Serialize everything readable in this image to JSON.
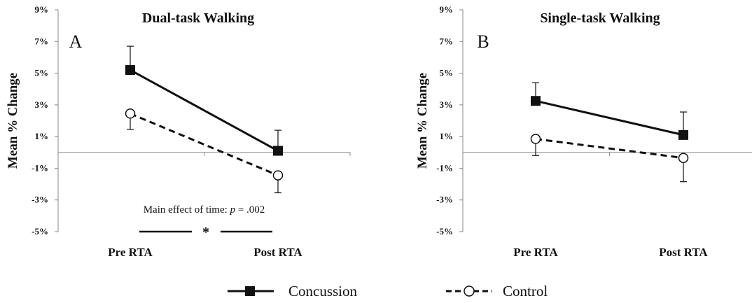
{
  "chart_data": [
    {
      "type": "line",
      "panel_letter": "A",
      "title": "Dual-task Walking",
      "ylabel": "Mean % Change",
      "categories": [
        "Pre RTA",
        "Post RTA"
      ],
      "y_ticks": [
        "9%",
        "7%",
        "5%",
        "3%",
        "1%",
        "-1%",
        "-3%",
        "-5%"
      ],
      "ylim": [
        -5,
        9
      ],
      "series": [
        {
          "name": "Concussion",
          "values": [
            5.2,
            0.1
          ],
          "error_up": [
            1.5,
            1.3
          ]
        },
        {
          "name": "Control",
          "values": [
            2.45,
            -1.45
          ],
          "error_down": [
            1.0,
            1.1
          ]
        }
      ],
      "annotation": {
        "prefix": "Main effect of time: ",
        "stat": "p",
        "value": " = .002",
        "marker": "*"
      }
    },
    {
      "type": "line",
      "panel_letter": "B",
      "title": "Single-task Walking",
      "ylabel": "Mean % Change",
      "categories": [
        "Pre RTA",
        "Post RTA"
      ],
      "y_ticks": [
        "9%",
        "7%",
        "5%",
        "3%",
        "1%",
        "-1%",
        "-3%",
        "-5%"
      ],
      "ylim": [
        -5,
        9
      ],
      "series": [
        {
          "name": "Concussion",
          "values": [
            3.25,
            1.1
          ],
          "error_up": [
            1.15,
            1.45
          ]
        },
        {
          "name": "Control",
          "values": [
            0.85,
            -0.35
          ],
          "error_down": [
            1.05,
            1.5
          ]
        }
      ]
    }
  ],
  "legend": {
    "items": [
      {
        "name": "Concussion",
        "style": "solid",
        "marker": "filled-square",
        "color": "#111111"
      },
      {
        "name": "Control",
        "style": "dashed",
        "marker": "open-circle",
        "color": "#111111"
      }
    ]
  },
  "colors": {
    "line": "#111111",
    "axis": "#888888",
    "background": "#ffffff"
  }
}
